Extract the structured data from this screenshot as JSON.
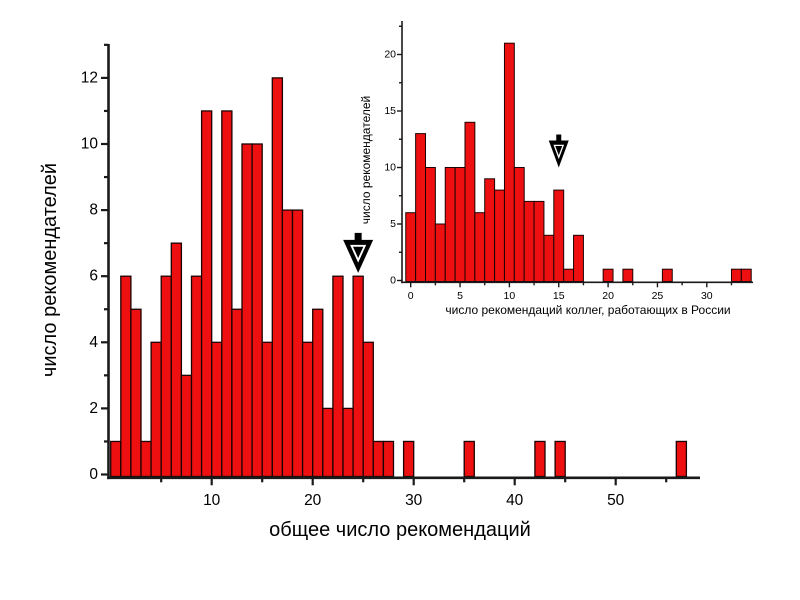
{
  "figure": {
    "background": "#ffffff",
    "bar_fill": "#ee1010",
    "bar_edge": "#1c0303",
    "axis_color": "#1a1a1a",
    "text_color": "#000000",
    "marker_color": "#000000",
    "marker_inner": "#ffffff"
  },
  "chart_data": [
    {
      "id": "main",
      "type": "bar",
      "title": "",
      "xlabel": "общее число рекомендаций",
      "ylabel": "число рекомендателей",
      "xlim": [
        0,
        58.5
      ],
      "ylim": [
        0,
        13
      ],
      "grid": false,
      "legend": null,
      "x_major_ticks": [
        10,
        20,
        30,
        40,
        50
      ],
      "x_minor_ticks": [
        5,
        15,
        25,
        35,
        45,
        55
      ],
      "y_major_ticks": [
        0,
        2,
        4,
        6,
        8,
        10,
        12
      ],
      "y_minor_ticks": [
        1,
        3,
        5,
        7,
        9,
        11,
        13
      ],
      "bin_width": 1,
      "bin_alignment": "right_edge_at_x",
      "bars": [
        [
          1,
          1
        ],
        [
          2,
          6
        ],
        [
          3,
          5
        ],
        [
          4,
          1
        ],
        [
          5,
          4
        ],
        [
          6,
          6
        ],
        [
          7,
          7
        ],
        [
          8,
          3
        ],
        [
          9,
          6
        ],
        [
          10,
          11
        ],
        [
          11,
          4
        ],
        [
          12,
          11
        ],
        [
          13,
          5
        ],
        [
          14,
          10
        ],
        [
          15,
          10
        ],
        [
          16,
          4
        ],
        [
          17,
          12
        ],
        [
          18,
          8
        ],
        [
          19,
          8
        ],
        [
          20,
          4
        ],
        [
          21,
          5
        ],
        [
          22,
          2
        ],
        [
          23,
          6
        ],
        [
          24,
          2
        ],
        [
          25,
          6
        ],
        [
          26,
          4
        ],
        [
          27,
          1
        ],
        [
          28,
          1
        ],
        [
          30,
          1
        ],
        [
          36,
          1
        ],
        [
          43,
          1
        ],
        [
          45,
          1
        ],
        [
          57,
          1
        ]
      ],
      "annotation_arrow": {
        "shape": "down-arrow",
        "x": 24.5,
        "tip_y": 6.1
      }
    },
    {
      "id": "inset",
      "type": "bar",
      "title": "",
      "xlabel": "число рекомендаций коллег, работающих в России",
      "ylabel": "число рекомендателей",
      "xlim": [
        -1,
        34.7
      ],
      "ylim": [
        0,
        22.8
      ],
      "grid": false,
      "legend": null,
      "x_major_ticks": [
        0,
        5,
        10,
        15,
        20,
        25,
        30
      ],
      "x_minor_ticks": [
        2.5,
        7.5,
        12.5,
        17.5,
        22.5,
        27.5,
        32.5
      ],
      "y_major_ticks": [
        0,
        5,
        10,
        15,
        20
      ],
      "y_minor_ticks": [
        2.5,
        7.5,
        12.5,
        17.5,
        22.5
      ],
      "bin_width": 1,
      "bin_alignment": "centered_on_x",
      "bars": [
        [
          0,
          6
        ],
        [
          1,
          13
        ],
        [
          2,
          10
        ],
        [
          3,
          5
        ],
        [
          4,
          10
        ],
        [
          5,
          10
        ],
        [
          6,
          14
        ],
        [
          7,
          6
        ],
        [
          8,
          9
        ],
        [
          9,
          8
        ],
        [
          10,
          21
        ],
        [
          11,
          10
        ],
        [
          12,
          7
        ],
        [
          13,
          7
        ],
        [
          14,
          4
        ],
        [
          15,
          8
        ],
        [
          16,
          1
        ],
        [
          17,
          4
        ],
        [
          20,
          1
        ],
        [
          22,
          1
        ],
        [
          26,
          1
        ],
        [
          33,
          1
        ],
        [
          34,
          1
        ]
      ],
      "annotation_arrow": {
        "shape": "down-arrow",
        "x": 15,
        "tip_y": 10
      }
    }
  ]
}
